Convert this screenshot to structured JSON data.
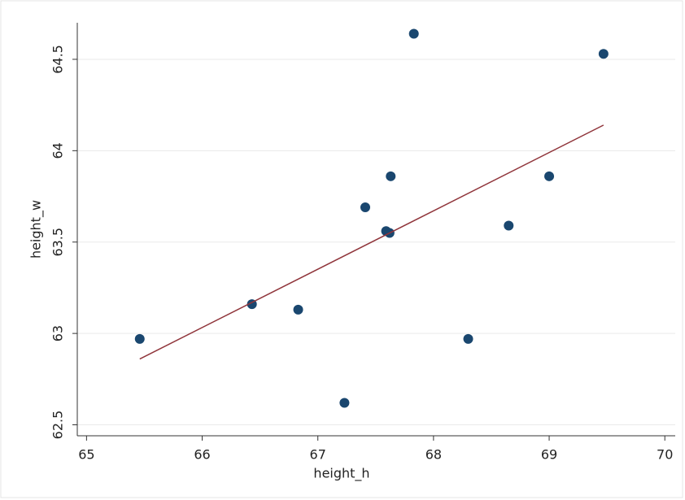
{
  "chart_data": {
    "type": "scatter",
    "xlabel": "height_h",
    "ylabel": "height_w",
    "series": [
      {
        "type": "scatter",
        "color": "#1a476f",
        "x": [
          65.46,
          66.43,
          66.83,
          67.23,
          67.41,
          67.59,
          67.62,
          67.63,
          67.83,
          68.3,
          68.65,
          69.0,
          69.47
        ],
        "values": [
          62.97,
          63.16,
          63.13,
          62.62,
          63.69,
          63.56,
          63.55,
          63.86,
          64.64,
          62.97,
          63.59,
          63.86,
          64.53
        ]
      },
      {
        "type": "line",
        "color": "#90353b",
        "x": [
          65.46,
          69.47
        ],
        "values": [
          62.86,
          64.14
        ]
      }
    ],
    "xlim": [
      64.92,
      70.09
    ],
    "ylim": [
      62.44,
      64.7
    ],
    "xticks": [
      65,
      66,
      67,
      68,
      69,
      70
    ],
    "yticks": [
      62.5,
      63,
      63.5,
      64,
      64.5
    ],
    "grid": true
  }
}
